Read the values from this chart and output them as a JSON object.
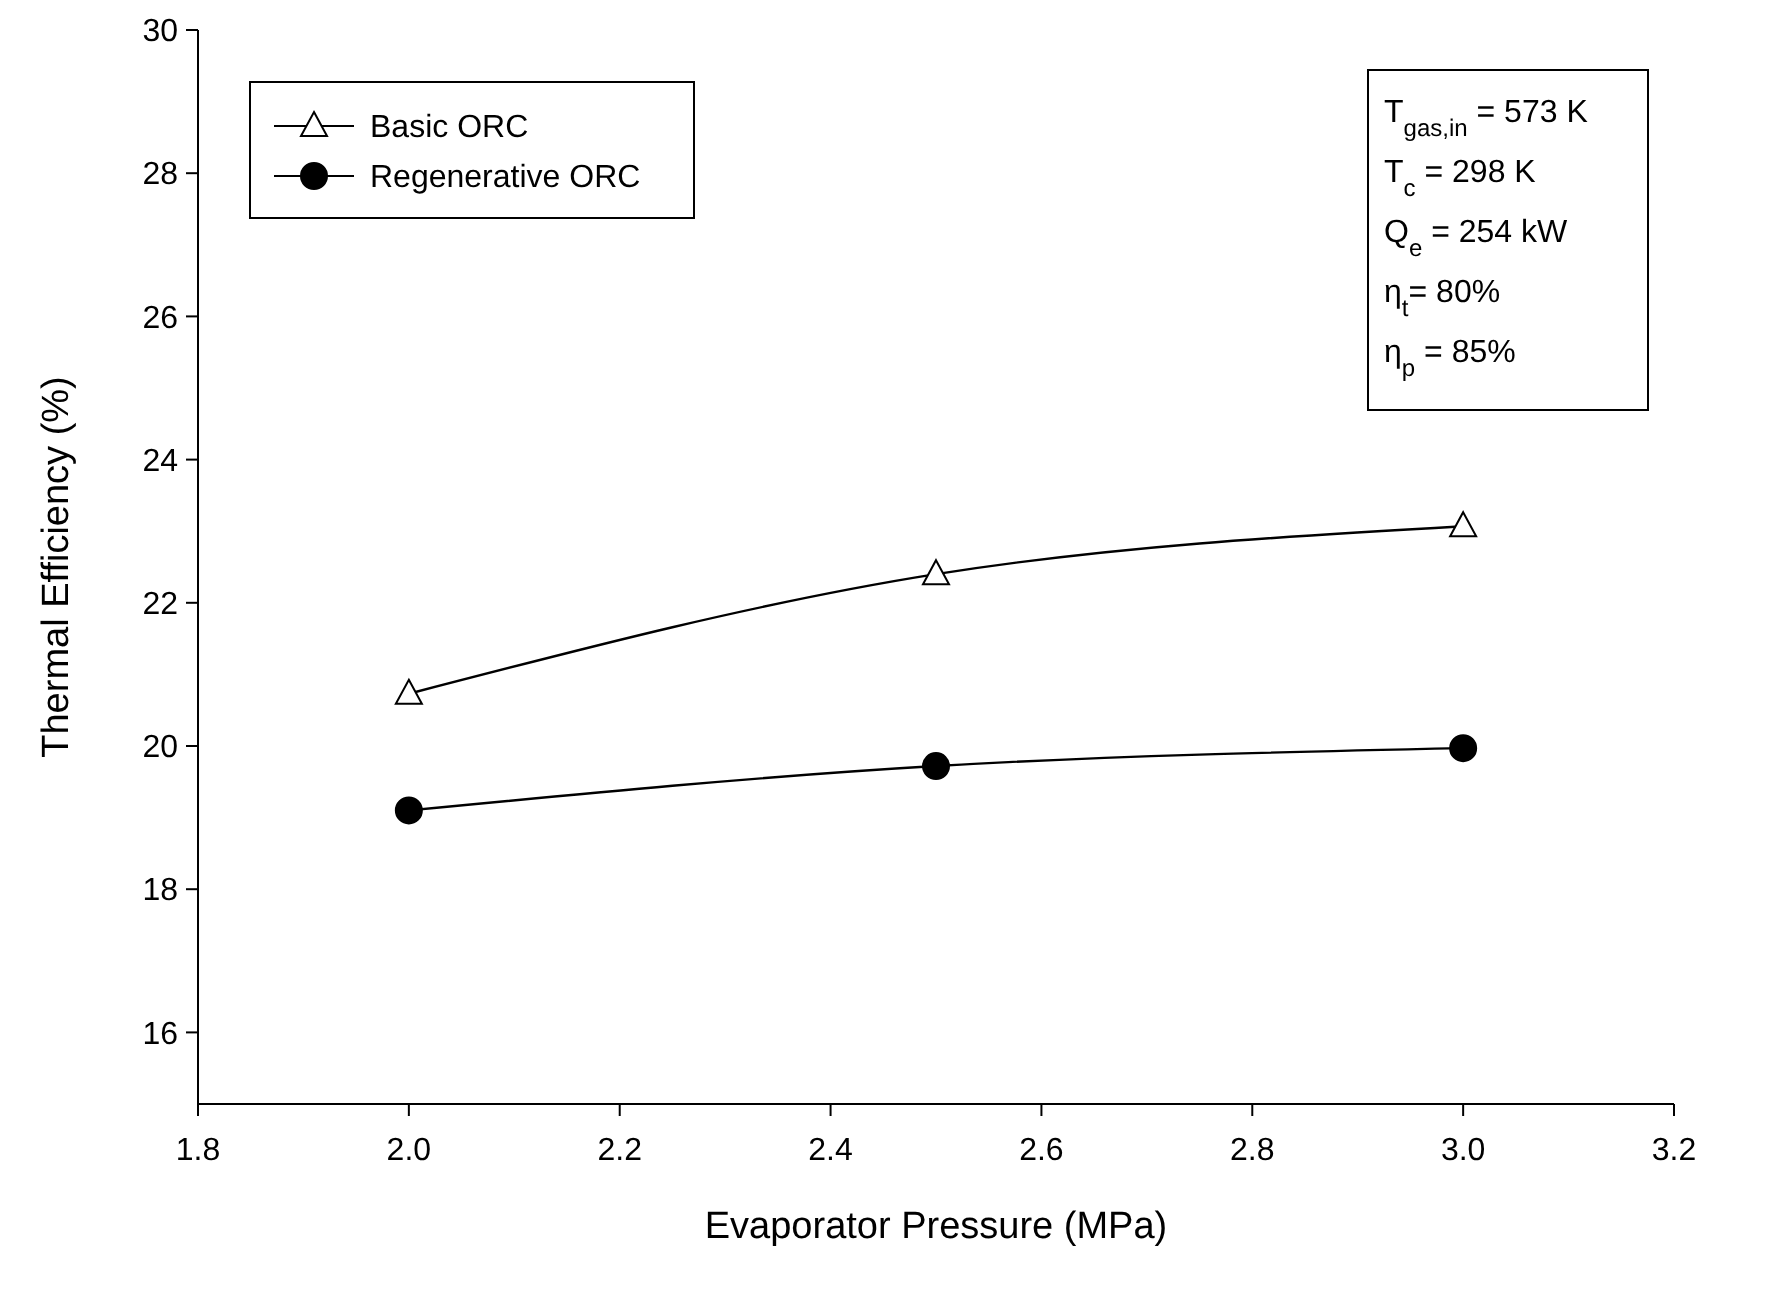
{
  "chart_data": {
    "type": "line",
    "xlabel": "Evaporator Pressure (MPa)",
    "ylabel": "Thermal Efficiency (%)",
    "x": [
      2.0,
      2.5,
      3.0
    ],
    "series": [
      {
        "name": "Basic ORC",
        "color": "#000000",
        "marker": "triangle",
        "values": [
          20.73,
          22.4,
          23.07
        ]
      },
      {
        "name": "Regenerative ORC",
        "color": "#000000",
        "marker": "circle",
        "values": [
          19.1,
          19.72,
          19.97
        ]
      }
    ],
    "xlim": [
      1.8,
      3.2
    ],
    "xticks": [
      {
        "value": 1.8,
        "label": "1.8"
      },
      {
        "value": 2.0,
        "label": "2.0"
      },
      {
        "value": 2.2,
        "label": "2.2"
      },
      {
        "value": 2.4,
        "label": "2.4"
      },
      {
        "value": 2.6,
        "label": "2.6"
      },
      {
        "value": 2.8,
        "label": "2.8"
      },
      {
        "value": 3.0,
        "label": "3.0"
      },
      {
        "value": 3.2,
        "label": "3.2"
      }
    ],
    "ylim": [
      15,
      30
    ],
    "yticks": [
      16,
      18,
      20,
      22,
      24,
      26,
      28,
      30
    ],
    "grid": false,
    "legend": "top left",
    "line_style": "solid",
    "annotations": [
      "T$_{gas,in}$ = 573 K",
      "T$_{c}$ = 298 K",
      "Q$_{e}$ = 254 kW",
      "η$_{t}$= 80%",
      "η$_{p}$ = 85%"
    ]
  }
}
